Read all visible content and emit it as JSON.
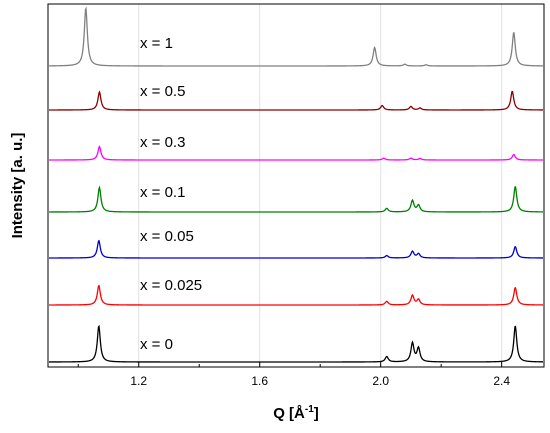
{
  "chart_data": {
    "type": "line",
    "xlabel": "Q [Å",
    "xlabel_sup": "-1",
    "xlabel_end": "]",
    "ylabel": "Intensity [a. u.]",
    "xlim": [
      0.9,
      2.54
    ],
    "x_ticks": [
      "1.2",
      "1.6",
      "2.0",
      "2.4"
    ],
    "x_tick_values": [
      1.2,
      1.6,
      2.0,
      2.4
    ],
    "x_minor_tick_values": [
      1.0,
      1.4,
      1.8,
      2.2
    ],
    "grid": "vertical",
    "y_ticks_shown": false,
    "series": [
      {
        "name": "x = 1",
        "color": "#808080",
        "peaks": [
          [
            1.025,
            1.0
          ],
          [
            1.98,
            0.32
          ],
          [
            2.08,
            0.03
          ],
          [
            2.15,
            0.02
          ],
          [
            2.44,
            0.58
          ]
        ]
      },
      {
        "name": "x = 0.5",
        "color": "#8b0000",
        "peaks": [
          [
            1.07,
            0.72
          ],
          [
            2.005,
            0.18
          ],
          [
            2.1,
            0.14
          ],
          [
            2.13,
            0.08
          ],
          [
            2.435,
            0.75
          ]
        ]
      },
      {
        "name": "x = 0.3",
        "color": "#ff00ff",
        "peaks": [
          [
            1.07,
            0.45
          ],
          [
            2.01,
            0.06
          ],
          [
            2.1,
            0.06
          ],
          [
            2.13,
            0.05
          ],
          [
            2.44,
            0.18
          ]
        ]
      },
      {
        "name": "x = 0.1",
        "color": "#008000",
        "peaks": [
          [
            1.07,
            0.82
          ],
          [
            2.02,
            0.12
          ],
          [
            2.105,
            0.38
          ],
          [
            2.125,
            0.22
          ],
          [
            2.445,
            0.85
          ]
        ]
      },
      {
        "name": "x = 0.05",
        "color": "#0000cd",
        "peaks": [
          [
            1.068,
            0.58
          ],
          [
            2.02,
            0.08
          ],
          [
            2.105,
            0.22
          ],
          [
            2.125,
            0.14
          ],
          [
            2.445,
            0.38
          ]
        ]
      },
      {
        "name": "x = 0.025",
        "color": "#ff0000",
        "peaks": [
          [
            1.068,
            0.65
          ],
          [
            2.02,
            0.12
          ],
          [
            2.105,
            0.32
          ],
          [
            2.125,
            0.18
          ],
          [
            2.445,
            0.58
          ]
        ]
      },
      {
        "name": "x = 0",
        "color": "#000000",
        "peaks": [
          [
            1.068,
            1.0
          ],
          [
            2.02,
            0.15
          ],
          [
            2.105,
            0.52
          ],
          [
            2.125,
            0.38
          ],
          [
            2.445,
            1.0
          ]
        ]
      }
    ]
  }
}
